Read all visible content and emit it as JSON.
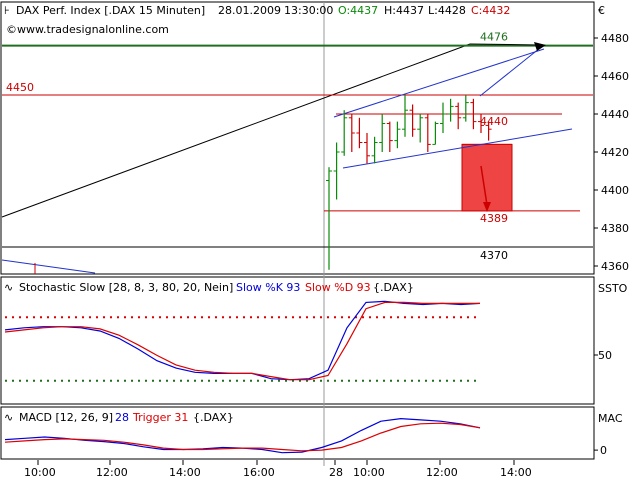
{
  "chart_data": [
    {
      "type": "bar",
      "title": "DAX Perf. Index [.DAX  15 Minuten]",
      "header": {
        "date": "28.01.2009",
        "time": "13:30:00",
        "open": "O:4437",
        "high": "H:4437",
        "low": "L:4428",
        "close": "C:4432"
      },
      "watermark": "www.tradesignalonline.com",
      "currency": "€",
      "y_ticks": [
        4360,
        4380,
        4400,
        4420,
        4440,
        4460,
        4480
      ],
      "ylim": [
        4356,
        4486
      ],
      "x_tick_labels": [
        "10:00",
        "12:00",
        "14:00",
        "16:00",
        "28",
        "10:00",
        "12:00",
        "14:00"
      ],
      "levels": [
        {
          "name": "4476",
          "value": 4476,
          "color": "#1f6f1f"
        },
        {
          "name": "4450",
          "value": 4450,
          "color": "#cc0000"
        },
        {
          "name": "4440",
          "value": 4440,
          "color": "#cc0000"
        },
        {
          "name": "4424",
          "value": 4424,
          "color": "#cc0000"
        },
        {
          "name": "4389",
          "value": 4389,
          "color": "#cc0000"
        },
        {
          "name": "4370",
          "value": 4370,
          "color": "#000000"
        }
      ],
      "ohlc": [
        {
          "o": 4405,
          "h": 4412,
          "l": 4358,
          "c": 4410
        },
        {
          "o": 4410,
          "h": 4425,
          "l": 4395,
          "c": 4420
        },
        {
          "o": 4420,
          "h": 4442,
          "l": 4418,
          "c": 4438
        },
        {
          "o": 4438,
          "h": 4440,
          "l": 4420,
          "c": 4430
        },
        {
          "o": 4430,
          "h": 4438,
          "l": 4422,
          "c": 4425
        },
        {
          "o": 4425,
          "h": 4430,
          "l": 4414,
          "c": 4418
        },
        {
          "o": 4418,
          "h": 4428,
          "l": 4414,
          "c": 4425
        },
        {
          "o": 4425,
          "h": 4440,
          "l": 4420,
          "c": 4435
        },
        {
          "o": 4435,
          "h": 4436,
          "l": 4420,
          "c": 4426
        },
        {
          "o": 4426,
          "h": 4436,
          "l": 4422,
          "c": 4432
        },
        {
          "o": 4432,
          "h": 4450,
          "l": 4428,
          "c": 4442
        },
        {
          "o": 4442,
          "h": 4445,
          "l": 4428,
          "c": 4432
        },
        {
          "o": 4432,
          "h": 4440,
          "l": 4425,
          "c": 4438
        },
        {
          "o": 4438,
          "h": 4440,
          "l": 4420,
          "c": 4424
        },
        {
          "o": 4424,
          "h": 4436,
          "l": 4424,
          "c": 4435
        },
        {
          "o": 4435,
          "h": 4446,
          "l": 4430,
          "c": 4440
        },
        {
          "o": 4440,
          "h": 4448,
          "l": 4436,
          "c": 4444
        },
        {
          "o": 4444,
          "h": 4446,
          "l": 4432,
          "c": 4438
        },
        {
          "o": 4438,
          "h": 4450,
          "l": 4436,
          "c": 4446
        },
        {
          "o": 4446,
          "h": 4448,
          "l": 4432,
          "c": 4436
        },
        {
          "o": 4436,
          "h": 4440,
          "l": 4430,
          "c": 4434
        },
        {
          "o": 4434,
          "h": 4436,
          "l": 4426,
          "c": 4432
        }
      ]
    },
    {
      "type": "line",
      "title": "Stochastic Slow [28, 8, 3, 80, 20, Nein]",
      "series": [
        {
          "name": "Slow %K 93",
          "color": "#0000dd",
          "values": [
            68,
            70,
            71,
            71,
            70,
            67,
            60,
            50,
            39,
            32,
            28,
            27,
            27,
            27,
            22,
            21,
            22,
            30,
            70,
            94,
            95,
            93,
            92,
            93,
            92,
            93
          ]
        },
        {
          "name": "Slow %D 93",
          "color": "#dd0000",
          "values": [
            66,
            68,
            70,
            71,
            71,
            69,
            63,
            54,
            44,
            35,
            30,
            28,
            27,
            27,
            24,
            21,
            21,
            25,
            55,
            88,
            94,
            94,
            93,
            93,
            93,
            93
          ]
        }
      ],
      "symbol": "{.DAX}",
      "right_label": "SSTO",
      "y_tick_labels": [
        "50"
      ],
      "levels": [
        80,
        20
      ],
      "ylim": [
        0,
        100
      ]
    },
    {
      "type": "line",
      "title": "MACD [12, 26, 9]",
      "series": [
        {
          "name": "28",
          "color": "#0000dd",
          "values": [
            16,
            18,
            20,
            18,
            15,
            13,
            10,
            5,
            1,
            1,
            2,
            4,
            3,
            1,
            -4,
            -3,
            4,
            14,
            30,
            44,
            48,
            46,
            44,
            40,
            34
          ]
        },
        {
          "name": "Trigger 31",
          "color": "#dd0000",
          "values": [
            12,
            14,
            16,
            17,
            16,
            15,
            12,
            8,
            3,
            1,
            1,
            2,
            3,
            3,
            1,
            -1,
            0,
            4,
            14,
            26,
            36,
            40,
            41,
            39,
            34
          ]
        }
      ],
      "symbol": "{.DAX}",
      "right_label": "MAC",
      "y_tick_labels": [
        "0"
      ],
      "ylim": [
        -12,
        58
      ]
    }
  ]
}
